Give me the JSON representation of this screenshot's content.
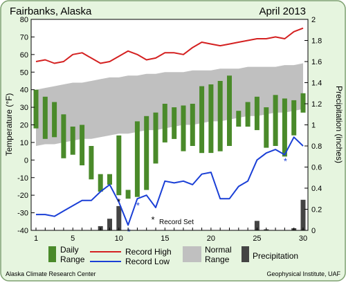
{
  "chart_data": {
    "type": "bar",
    "title_left": "Fairbanks, Alaska",
    "title_right": "April 2013",
    "ylabel_left": "Temperature (°F)",
    "ylabel_right": "Precipitation (inches)",
    "x": [
      1,
      2,
      3,
      4,
      5,
      6,
      7,
      8,
      9,
      10,
      11,
      12,
      13,
      14,
      15,
      16,
      17,
      18,
      19,
      20,
      21,
      22,
      23,
      24,
      25,
      26,
      27,
      28,
      29,
      30
    ],
    "xticks": [
      "1",
      "5",
      "10",
      "15",
      "20",
      "25",
      "30"
    ],
    "ylim_left": [
      -40,
      80
    ],
    "yticks_left": [
      "80",
      "70",
      "60",
      "50",
      "40",
      "30",
      "20",
      "10",
      "0",
      "-10",
      "-20",
      "-30",
      "-40"
    ],
    "ylim_right": [
      0,
      2
    ],
    "yticks_right": [
      "2",
      "1.8",
      "1.6",
      "1.4",
      "1.2",
      "1",
      "0.8",
      "0.6",
      "0.4",
      "0.2",
      "0"
    ],
    "grid": false,
    "legend_position": "bottom",
    "daily_range": {
      "name": "Daily Range",
      "color": "#4a8a2a",
      "high": [
        40,
        36,
        33,
        26,
        19,
        20,
        8,
        -8,
        -8,
        14,
        -17,
        22,
        25,
        27,
        32,
        30,
        31,
        32,
        42,
        43,
        45,
        48,
        28,
        33,
        36,
        30,
        37,
        35,
        34,
        38
      ],
      "low": [
        18,
        12,
        13,
        1,
        3,
        -3,
        -11,
        -18,
        -14,
        -20,
        -22,
        -21,
        -17,
        -2,
        10,
        12,
        5,
        8,
        4,
        4,
        5,
        8,
        19,
        19,
        17,
        7,
        8,
        2,
        14,
        27
      ]
    },
    "record_high": {
      "name": "Record High",
      "color": "#d42020",
      "values": [
        56,
        57,
        55,
        56,
        60,
        61,
        58,
        55,
        56,
        59,
        62,
        60,
        57,
        58,
        61,
        61,
        60,
        64,
        67,
        66,
        65,
        66,
        67,
        68,
        69,
        69,
        70,
        69,
        73,
        75
      ]
    },
    "record_low": {
      "name": "Record Low",
      "color": "#1a3fd6",
      "values": [
        -31,
        -31,
        -32,
        -29,
        -26,
        -23,
        -23,
        -18,
        -14,
        -24,
        -37,
        -22,
        -20,
        -27,
        -12,
        -13,
        -12,
        -14,
        -8,
        -7,
        -22,
        -22,
        -15,
        -12,
        0,
        4,
        6,
        3,
        13,
        8
      ]
    },
    "normal_range": {
      "name": "Normal Range",
      "color": "#c0c0c0",
      "high": [
        40,
        41,
        42,
        43,
        44,
        44,
        45,
        46,
        47,
        47,
        48,
        48,
        49,
        49,
        50,
        50,
        50,
        51,
        51,
        51,
        52,
        52,
        52,
        53,
        53,
        53,
        53,
        54,
        54,
        55
      ],
      "low": [
        8,
        9,
        9,
        10,
        11,
        12,
        12,
        13,
        14,
        15,
        15,
        16,
        17,
        17,
        18,
        19,
        20,
        20,
        21,
        22,
        22,
        23,
        24,
        25,
        25,
        26,
        27,
        27,
        28,
        29
      ]
    },
    "precipitation": {
      "name": "Precipitation",
      "color": "#444444",
      "values": [
        0,
        0,
        0,
        0,
        0,
        0,
        0,
        0.04,
        0.11,
        0.23,
        0,
        0,
        0,
        0,
        0,
        0,
        0,
        0,
        0,
        0,
        0,
        0,
        0,
        0,
        0.09,
        0.01,
        0,
        0,
        0.02,
        0.29
      ]
    },
    "record_set": {
      "label": "Record Set",
      "temp_days": [
        11,
        12,
        28
      ],
      "precip_days": [
        10
      ]
    }
  },
  "footer": {
    "left": "Alaska Climate Research Center",
    "right": "Geophysical Institute, UAF"
  },
  "colors": {
    "background": "#e6f5df",
    "plot_background": "#ffffff",
    "frame_border": "#7da070"
  }
}
